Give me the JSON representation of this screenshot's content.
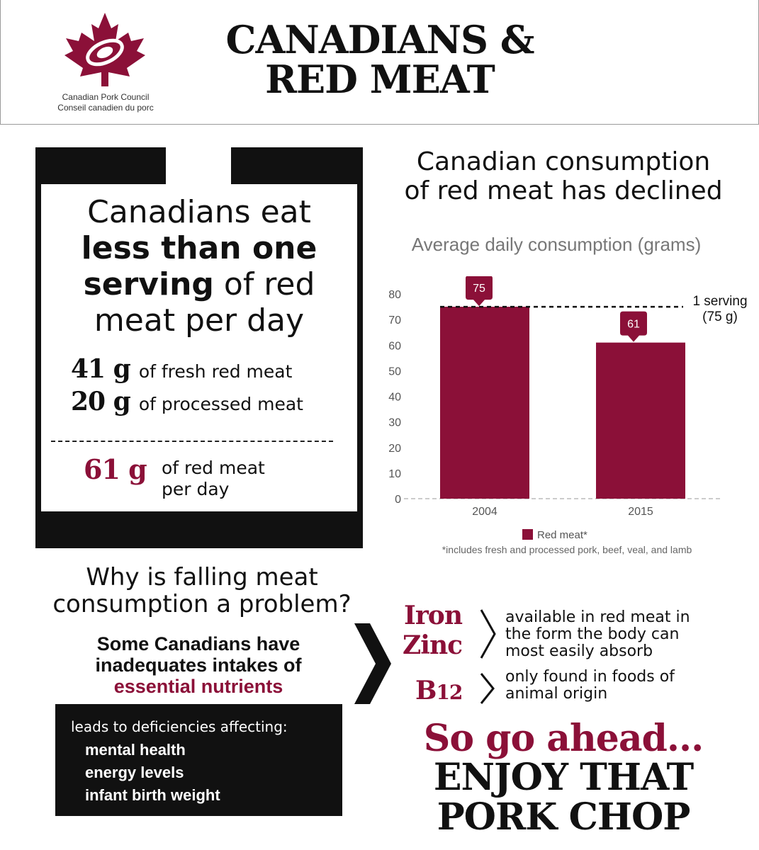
{
  "header": {
    "title_line1": "CANADIANS &",
    "title_line2": "RED MEAT",
    "org_en": "Canadian Pork Council",
    "org_fr": "Conseil canadien du porc",
    "logo_icon": "maple-leaf-icon",
    "brand_color": "#8b1038"
  },
  "card": {
    "line1": "Canadians eat",
    "line2": "less than one",
    "line3_bold": "serving",
    "line3_rest": " of red",
    "line4": "meat per day",
    "fresh_value": "41 g",
    "fresh_label": "of fresh red meat",
    "processed_value": "20 g",
    "processed_label": "of processed meat",
    "total_value": "61 g",
    "total_label_line1": "of red meat",
    "total_label_line2": "per day"
  },
  "chart_heading": {
    "line1": "Canadian consumption",
    "line2": "of red meat has declined"
  },
  "chart_data": {
    "type": "bar",
    "title": "Average daily consumption (grams)",
    "categories": [
      "2004",
      "2015"
    ],
    "series": [
      {
        "name": "Red meat*",
        "values": [
          75,
          61
        ],
        "color": "#8b1038"
      }
    ],
    "ylim": [
      0,
      80
    ],
    "yticks": [
      "0",
      "10",
      "20",
      "30",
      "40",
      "50",
      "60",
      "70",
      "80"
    ],
    "data_labels": [
      "75",
      "61"
    ],
    "reference_line": {
      "value": 75,
      "label_line1": "1 serving",
      "label_line2": "(75 g)"
    },
    "legend": "bottom",
    "footnote": "*includes fresh and processed pork, beef, veal, and lamb"
  },
  "problem": {
    "title_line1": "Why is falling meat",
    "title_line2": "consumption a problem?",
    "text_line1": "Some Canadians have",
    "text_line2": "inadequates intakes of",
    "text_line3": "essential nutrients",
    "lead": "leads to deficiencies affecting:",
    "items": [
      "mental health",
      "energy levels",
      "infant birth weight"
    ]
  },
  "nutrients": {
    "iron": "Iron",
    "zinc": "Zinc",
    "b_letter": "B",
    "b_number": "12",
    "desc1_line1": "available in red meat in",
    "desc1_line2": "the form the body can",
    "desc1_line3": "most easily absorb",
    "desc2_line1": "only found in foods of",
    "desc2_line2": "animal origin"
  },
  "closing": {
    "line1": "So go ahead...",
    "line2": "ENJOY THAT",
    "line3": "PORK CHOP"
  }
}
